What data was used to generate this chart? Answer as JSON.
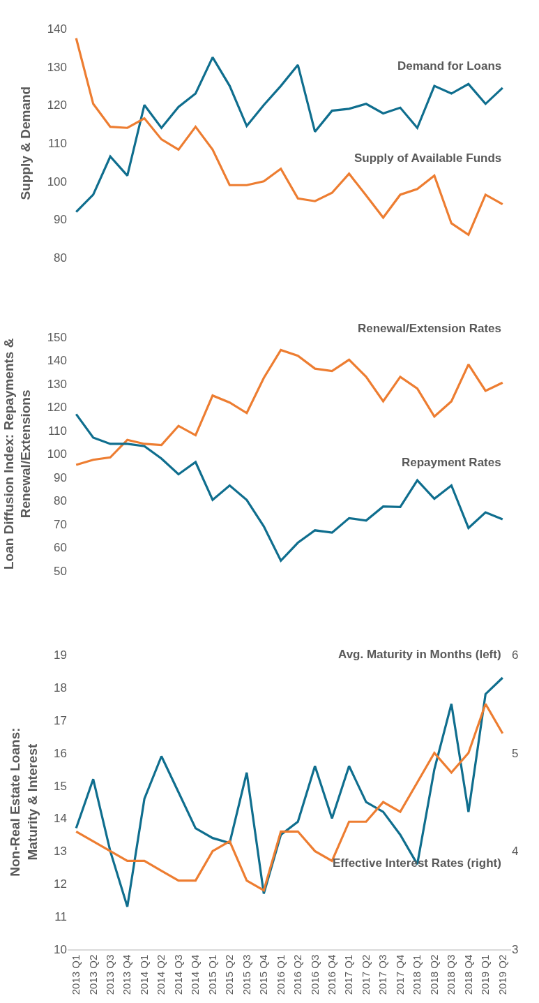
{
  "chart_data": [
    {
      "type": "line",
      "ylabel": "Supply & Demand",
      "categories": [
        null,
        null,
        null,
        null,
        null,
        null,
        null,
        null,
        null,
        null,
        null,
        null,
        null,
        null,
        null,
        null,
        null,
        null,
        null,
        null,
        null,
        null,
        null,
        null,
        null,
        null
      ],
      "ylim": [
        80,
        140
      ],
      "yticks": [
        80,
        90,
        100,
        110,
        120,
        130,
        140
      ],
      "tick_labels": "y",
      "series": [
        {
          "name": "Demand for Loans",
          "color": "#0f6e8e",
          "values": [
            92,
            96.5,
            106.5,
            101.5,
            120,
            114,
            119.5,
            123,
            132.5,
            125,
            114.5,
            120,
            125,
            130.5,
            113,
            118.5,
            119,
            120.3,
            117.8,
            119.3,
            114,
            125,
            123,
            125.5,
            120.3,
            124.5
          ]
        },
        {
          "name": "Supply of Available Funds",
          "color": "#ed7d31",
          "values": [
            137.5,
            120.3,
            114.3,
            114,
            116.5,
            111,
            108.3,
            114.3,
            108.3,
            99,
            99,
            100,
            103.3,
            95.5,
            94.8,
            97,
            102,
            96.3,
            90.5,
            96.5,
            98,
            101.5,
            89,
            86,
            96.5,
            94
          ]
        }
      ]
    },
    {
      "type": "line",
      "ylabel": "Loan Diffusion Index: Repayments &\nRenewal/Extensions",
      "categories": [
        null,
        null,
        null,
        null,
        null,
        null,
        null,
        null,
        null,
        null,
        null,
        null,
        null,
        null,
        null,
        null,
        null,
        null,
        null,
        null,
        null,
        null,
        null,
        null,
        null,
        null
      ],
      "ylim": [
        50,
        150
      ],
      "yticks": [
        50,
        60,
        70,
        80,
        90,
        100,
        110,
        120,
        130,
        140,
        150
      ],
      "tick_labels": "y",
      "series": [
        {
          "name": "Renewal/Extension Rates",
          "color": "#ed7d31",
          "values": [
            95.3,
            97.5,
            98.5,
            106,
            104.3,
            103.8,
            112,
            108,
            125,
            122,
            117.5,
            132.5,
            144.5,
            142,
            136.5,
            135.5,
            140.3,
            133,
            122.5,
            133,
            128,
            116,
            122.5,
            138.3,
            127,
            130.5
          ]
        },
        {
          "name": "Repayment Rates",
          "color": "#0f6e8e",
          "values": [
            117,
            107,
            104.3,
            104.3,
            103.3,
            98,
            91.3,
            96.5,
            80.3,
            86.5,
            80.3,
            69,
            54.3,
            62,
            67.3,
            66.3,
            72.5,
            71.5,
            77.5,
            77.3,
            88.7,
            80.8,
            86.5,
            68.3,
            75,
            72
          ]
        }
      ]
    },
    {
      "type": "line",
      "ylabel": "Non-Real Estate Loans:\nMaturity & Interest",
      "categories": [
        "2013 Q1",
        "2013 Q2",
        "2013 Q3",
        "2013 Q4",
        "2014 Q1",
        "2014 Q2",
        "2014 Q3",
        "2014 Q4",
        "2015 Q1",
        "2015 Q2",
        "2015 Q3",
        "2015 Q4",
        "2016 Q1",
        "2016 Q2",
        "2016 Q3",
        "2016 Q4",
        "2017 Q1",
        "2017 Q2",
        "2017 Q3",
        "2017 Q4",
        "2018 Q1",
        "2018 Q2",
        "2018 Q3",
        "2018 Q4",
        "2019 Q1",
        "2019 Q2"
      ],
      "ylim": [
        10,
        19
      ],
      "yticks": [
        10,
        11,
        12,
        13,
        14,
        15,
        16,
        17,
        18,
        19
      ],
      "y2lim": [
        3,
        6
      ],
      "y2ticks": [
        3,
        4,
        5,
        6
      ],
      "series": [
        {
          "name": "Avg. Maturity in Months (left)",
          "color": "#0f6e8e",
          "values": [
            13.7,
            15.2,
            13.0,
            11.3,
            14.6,
            15.9,
            14.8,
            13.7,
            13.4,
            13.25,
            15.4,
            11.7,
            13.5,
            13.9,
            15.6,
            14.0,
            15.6,
            14.5,
            14.2,
            13.5,
            12.6,
            15.5,
            17.5,
            14.2,
            17.8,
            18.3
          ]
        },
        {
          "name": "Effective Interest Rates (right)",
          "color": "#ed7d31",
          "axis": "y2",
          "values": [
            4.2,
            4.1,
            4.0,
            3.9,
            3.9,
            3.8,
            3.7,
            3.7,
            4.0,
            4.1,
            3.7,
            3.6,
            4.2,
            4.2,
            4.0,
            3.9,
            4.3,
            4.3,
            4.5,
            4.4,
            4.7,
            5.0,
            4.8,
            5.0,
            5.5,
            5.2
          ]
        }
      ]
    }
  ]
}
